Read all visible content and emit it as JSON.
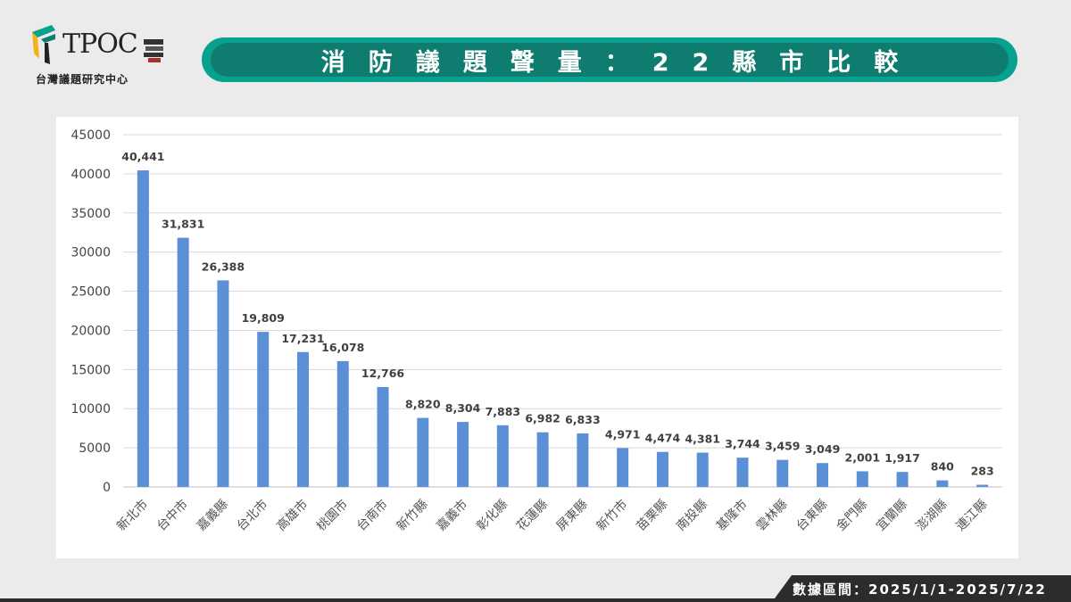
{
  "logo": {
    "text": "TPOC",
    "subtitle": "台灣議題研究中心"
  },
  "banner": {
    "title": "消防議題聲量：22縣市比較"
  },
  "footer": {
    "date_range": "數據區間：2025/1/1-2025/7/22"
  },
  "colors": {
    "bar": "#5b8fd6",
    "banner_outer": "#07a28e",
    "banner_inner": "#0e7c6f",
    "background": "#ebebeb"
  },
  "chart_data": {
    "type": "bar",
    "title": "",
    "xlabel": "",
    "ylabel": "",
    "ylim": [
      0,
      45000
    ],
    "y_ticks": [
      "0",
      "5000",
      "10000",
      "15000",
      "20000",
      "25000",
      "30000",
      "35000",
      "40000",
      "45000"
    ],
    "grid": true,
    "legend": "none",
    "categories": [
      "新北市",
      "台中市",
      "嘉義縣",
      "台北市",
      "高雄市",
      "桃園市",
      "台南市",
      "新竹縣",
      "嘉義市",
      "彰化縣",
      "花蓮縣",
      "屏東縣",
      "新竹市",
      "苗栗縣",
      "南投縣",
      "基隆市",
      "雲林縣",
      "台東縣",
      "金門縣",
      "宜蘭縣",
      "澎湖縣",
      "連江縣"
    ],
    "values": [
      40441,
      31831,
      26388,
      19809,
      17231,
      16078,
      12766,
      8820,
      8304,
      7883,
      6982,
      6833,
      4971,
      4474,
      4381,
      3744,
      3459,
      3049,
      2001,
      1917,
      840,
      283
    ],
    "value_labels": [
      "40,441",
      "31,831",
      "26,388",
      "19,809",
      "17,231",
      "16,078",
      "12,766",
      "8,820",
      "8,304",
      "7,883",
      "6,982",
      "6,833",
      "4,971",
      "4,474",
      "4,381",
      "3,744",
      "3,459",
      "3,049",
      "2,001",
      "1,917",
      "840",
      "283"
    ]
  }
}
